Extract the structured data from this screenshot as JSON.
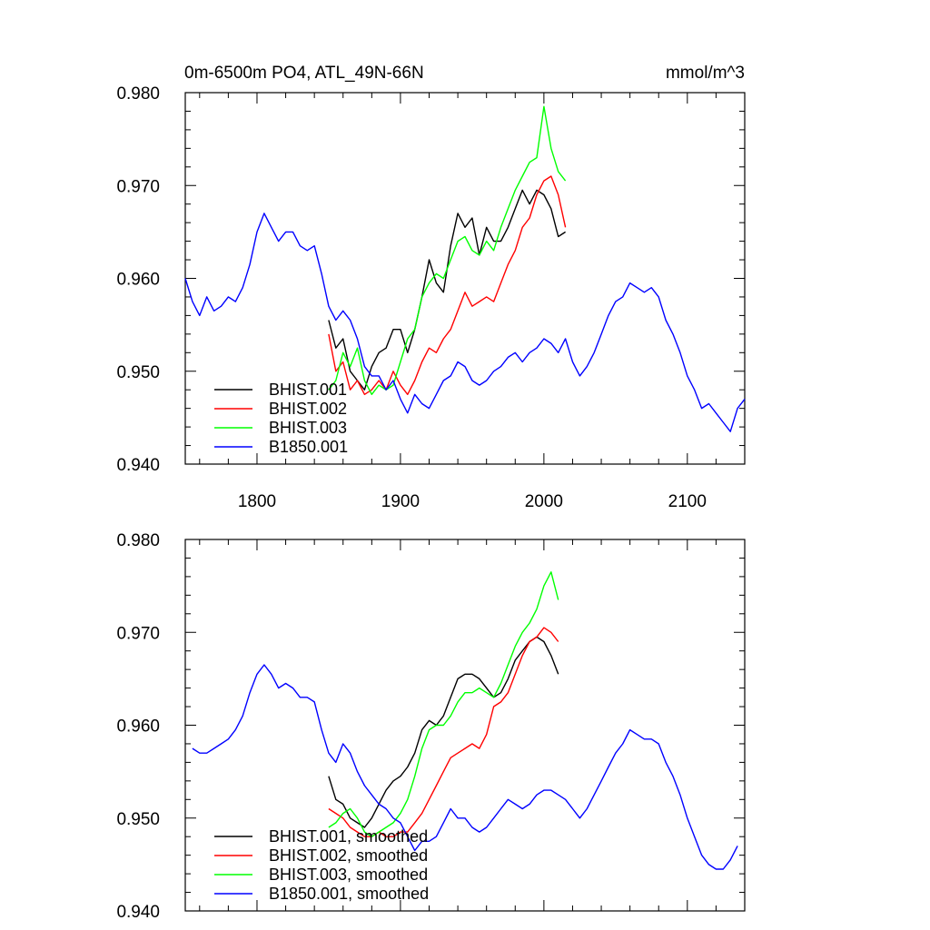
{
  "chart_data": [
    {
      "type": "line",
      "title": "0m-6500m PO4, ATL_49N-66N",
      "units": "mmol/m^3",
      "xlim": [
        1750,
        2140
      ],
      "ylim": [
        0.94,
        0.98
      ],
      "xticks": [
        "1800",
        "1900",
        "2000",
        "2100"
      ],
      "yticks": [
        "0.940",
        "0.950",
        "0.960",
        "0.970",
        "0.980"
      ],
      "legend_position": "bottom-left",
      "series": [
        {
          "name": "BHIST.001",
          "color": "#000000",
          "x": [
            1850,
            1855,
            1860,
            1865,
            1870,
            1875,
            1880,
            1885,
            1890,
            1895,
            1900,
            1905,
            1910,
            1915,
            1920,
            1925,
            1930,
            1935,
            1940,
            1945,
            1950,
            1955,
            1960,
            1965,
            1970,
            1975,
            1980,
            1985,
            1990,
            1995,
            2000,
            2005,
            2010,
            2015
          ],
          "y": [
            0.9555,
            0.9525,
            0.9535,
            0.95,
            0.949,
            0.948,
            0.9505,
            0.952,
            0.9525,
            0.9545,
            0.9545,
            0.952,
            0.9545,
            0.958,
            0.962,
            0.9595,
            0.9585,
            0.9635,
            0.967,
            0.9655,
            0.9665,
            0.9625,
            0.9655,
            0.964,
            0.964,
            0.9655,
            0.9675,
            0.9695,
            0.968,
            0.9695,
            0.969,
            0.9675,
            0.9645,
            0.965
          ]
        },
        {
          "name": "BHIST.002",
          "color": "#ff0000",
          "x": [
            1850,
            1855,
            1860,
            1865,
            1870,
            1875,
            1880,
            1885,
            1890,
            1895,
            1900,
            1905,
            1910,
            1915,
            1920,
            1925,
            1930,
            1935,
            1940,
            1945,
            1950,
            1955,
            1960,
            1965,
            1970,
            1975,
            1980,
            1985,
            1990,
            1995,
            2000,
            2005,
            2010,
            2015
          ],
          "y": [
            0.954,
            0.95,
            0.951,
            0.948,
            0.949,
            0.9475,
            0.948,
            0.949,
            0.948,
            0.95,
            0.9485,
            0.9475,
            0.949,
            0.951,
            0.9525,
            0.952,
            0.9535,
            0.9545,
            0.9565,
            0.9585,
            0.957,
            0.9575,
            0.958,
            0.9575,
            0.9595,
            0.9615,
            0.963,
            0.9655,
            0.9665,
            0.969,
            0.9705,
            0.971,
            0.969,
            0.9655
          ]
        },
        {
          "name": "BHIST.003",
          "color": "#00ff00",
          "x": [
            1850,
            1855,
            1860,
            1865,
            1870,
            1875,
            1880,
            1885,
            1890,
            1895,
            1900,
            1905,
            1910,
            1915,
            1920,
            1925,
            1930,
            1935,
            1940,
            1945,
            1950,
            1955,
            1960,
            1965,
            1970,
            1975,
            1980,
            1985,
            1990,
            1995,
            2000,
            2005,
            2010,
            2015
          ],
          "y": [
            0.948,
            0.949,
            0.952,
            0.9505,
            0.9525,
            0.949,
            0.9475,
            0.9485,
            0.948,
            0.9485,
            0.951,
            0.9535,
            0.9545,
            0.958,
            0.9595,
            0.9605,
            0.96,
            0.962,
            0.964,
            0.9645,
            0.963,
            0.9625,
            0.964,
            0.963,
            0.9655,
            0.9675,
            0.9695,
            0.971,
            0.9725,
            0.973,
            0.9785,
            0.974,
            0.9715,
            0.9705
          ]
        },
        {
          "name": "B1850.001",
          "color": "#0000ff",
          "x": [
            1750,
            1755,
            1760,
            1765,
            1770,
            1775,
            1780,
            1785,
            1790,
            1795,
            1800,
            1805,
            1810,
            1815,
            1820,
            1825,
            1830,
            1835,
            1840,
            1845,
            1850,
            1855,
            1860,
            1865,
            1870,
            1875,
            1880,
            1885,
            1890,
            1895,
            1900,
            1905,
            1910,
            1915,
            1920,
            1925,
            1930,
            1935,
            1940,
            1945,
            1950,
            1955,
            1960,
            1965,
            1970,
            1975,
            1980,
            1985,
            1990,
            1995,
            2000,
            2005,
            2010,
            2015,
            2020,
            2025,
            2030,
            2035,
            2040,
            2045,
            2050,
            2055,
            2060,
            2065,
            2070,
            2075,
            2080,
            2085,
            2090,
            2095,
            2100,
            2105,
            2110,
            2115,
            2120,
            2125,
            2130,
            2135,
            2140
          ],
          "y": [
            0.96,
            0.9575,
            0.956,
            0.958,
            0.9565,
            0.957,
            0.958,
            0.9575,
            0.959,
            0.9615,
            0.965,
            0.967,
            0.9655,
            0.964,
            0.965,
            0.965,
            0.9635,
            0.963,
            0.9635,
            0.9605,
            0.957,
            0.9555,
            0.9565,
            0.9555,
            0.9535,
            0.9505,
            0.9495,
            0.9495,
            0.948,
            0.949,
            0.947,
            0.9455,
            0.9475,
            0.9465,
            0.946,
            0.9475,
            0.949,
            0.9495,
            0.951,
            0.9505,
            0.949,
            0.9485,
            0.949,
            0.95,
            0.9505,
            0.9515,
            0.952,
            0.951,
            0.952,
            0.9525,
            0.9535,
            0.953,
            0.952,
            0.9535,
            0.951,
            0.9495,
            0.9505,
            0.952,
            0.954,
            0.956,
            0.9575,
            0.958,
            0.9595,
            0.959,
            0.9585,
            0.959,
            0.958,
            0.9555,
            0.954,
            0.952,
            0.9495,
            0.948,
            0.946,
            0.9465,
            0.9455,
            0.9445,
            0.9435,
            0.946,
            0.947
          ]
        }
      ]
    },
    {
      "type": "line",
      "title": "",
      "xlim": [
        1750,
        2140
      ],
      "ylim": [
        0.94,
        0.98
      ],
      "yticks": [
        "0.940",
        "0.950",
        "0.960",
        "0.970",
        "0.980"
      ],
      "legend_position": "bottom-left",
      "series": [
        {
          "name": "BHIST.001, smoothed",
          "color": "#000000",
          "x": [
            1850,
            1855,
            1860,
            1865,
            1870,
            1875,
            1880,
            1885,
            1890,
            1895,
            1900,
            1905,
            1910,
            1915,
            1920,
            1925,
            1930,
            1935,
            1940,
            1945,
            1950,
            1955,
            1960,
            1965,
            1970,
            1975,
            1980,
            1985,
            1990,
            1995,
            2000,
            2005,
            2010
          ],
          "y": [
            0.9545,
            0.952,
            0.9515,
            0.95,
            0.9495,
            0.949,
            0.95,
            0.9515,
            0.953,
            0.954,
            0.9545,
            0.9555,
            0.957,
            0.9595,
            0.9605,
            0.96,
            0.961,
            0.963,
            0.965,
            0.9655,
            0.9655,
            0.965,
            0.964,
            0.963,
            0.9635,
            0.965,
            0.967,
            0.968,
            0.969,
            0.9695,
            0.969,
            0.9675,
            0.9655
          ]
        },
        {
          "name": "BHIST.002, smoothed",
          "color": "#ff0000",
          "x": [
            1850,
            1855,
            1860,
            1865,
            1870,
            1875,
            1880,
            1885,
            1890,
            1895,
            1900,
            1905,
            1910,
            1915,
            1920,
            1925,
            1930,
            1935,
            1940,
            1945,
            1950,
            1955,
            1960,
            1965,
            1970,
            1975,
            1980,
            1985,
            1990,
            1995,
            2000,
            2005,
            2010
          ],
          "y": [
            0.951,
            0.9505,
            0.95,
            0.949,
            0.9485,
            0.948,
            0.948,
            0.9485,
            0.948,
            0.948,
            0.9485,
            0.9485,
            0.9495,
            0.9505,
            0.952,
            0.9535,
            0.955,
            0.9565,
            0.957,
            0.9575,
            0.958,
            0.9575,
            0.959,
            0.962,
            0.9625,
            0.9635,
            0.9655,
            0.9675,
            0.969,
            0.9695,
            0.9705,
            0.97,
            0.969
          ]
        },
        {
          "name": "BHIST.003, smoothed",
          "color": "#00ff00",
          "x": [
            1850,
            1855,
            1860,
            1865,
            1870,
            1875,
            1880,
            1885,
            1890,
            1895,
            1900,
            1905,
            1910,
            1915,
            1920,
            1925,
            1930,
            1935,
            1940,
            1945,
            1950,
            1955,
            1960,
            1965,
            1970,
            1975,
            1980,
            1985,
            1990,
            1995,
            2000,
            2005,
            2010
          ],
          "y": [
            0.949,
            0.9495,
            0.9505,
            0.951,
            0.95,
            0.9485,
            0.948,
            0.9485,
            0.949,
            0.9495,
            0.9505,
            0.952,
            0.9545,
            0.9575,
            0.9595,
            0.96,
            0.96,
            0.961,
            0.9625,
            0.9635,
            0.9635,
            0.964,
            0.9635,
            0.963,
            0.9645,
            0.9665,
            0.9685,
            0.97,
            0.971,
            0.9725,
            0.975,
            0.9765,
            0.9735
          ]
        },
        {
          "name": "B1850.001, smoothed",
          "color": "#0000ff",
          "x": [
            1755,
            1760,
            1765,
            1770,
            1775,
            1780,
            1785,
            1790,
            1795,
            1800,
            1805,
            1810,
            1815,
            1820,
            1825,
            1830,
            1835,
            1840,
            1845,
            1850,
            1855,
            1860,
            1865,
            1870,
            1875,
            1880,
            1885,
            1890,
            1895,
            1900,
            1905,
            1910,
            1915,
            1920,
            1925,
            1930,
            1935,
            1940,
            1945,
            1950,
            1955,
            1960,
            1965,
            1970,
            1975,
            1980,
            1985,
            1990,
            1995,
            2000,
            2005,
            2010,
            2015,
            2020,
            2025,
            2030,
            2035,
            2040,
            2045,
            2050,
            2055,
            2060,
            2065,
            2070,
            2075,
            2080,
            2085,
            2090,
            2095,
            2100,
            2105,
            2110,
            2115,
            2120,
            2125,
            2130,
            2135
          ],
          "y": [
            0.9575,
            0.957,
            0.957,
            0.9575,
            0.958,
            0.9585,
            0.9595,
            0.961,
            0.9635,
            0.9655,
            0.9665,
            0.9655,
            0.964,
            0.9645,
            0.964,
            0.963,
            0.963,
            0.9625,
            0.9595,
            0.957,
            0.956,
            0.958,
            0.957,
            0.955,
            0.9535,
            0.9525,
            0.9515,
            0.951,
            0.95,
            0.9495,
            0.948,
            0.9465,
            0.9475,
            0.9475,
            0.948,
            0.9495,
            0.951,
            0.95,
            0.95,
            0.949,
            0.9485,
            0.949,
            0.95,
            0.951,
            0.952,
            0.9515,
            0.951,
            0.9515,
            0.9525,
            0.953,
            0.953,
            0.9525,
            0.952,
            0.951,
            0.95,
            0.951,
            0.9525,
            0.954,
            0.9555,
            0.957,
            0.958,
            0.9595,
            0.959,
            0.9585,
            0.9585,
            0.958,
            0.956,
            0.9545,
            0.9525,
            0.95,
            0.948,
            0.946,
            0.945,
            0.9445,
            0.9445,
            0.9455,
            0.947
          ]
        }
      ]
    }
  ]
}
